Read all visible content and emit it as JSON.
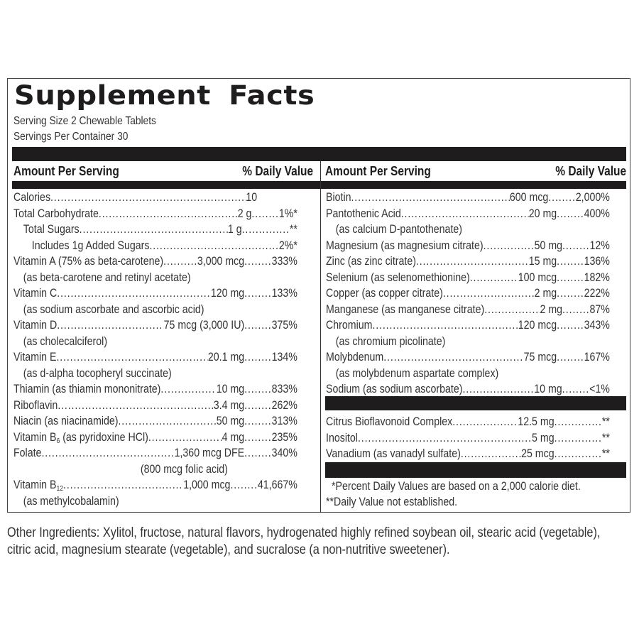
{
  "panel": {
    "title": "Supplement  Facts",
    "serving_size": "Serving Size 2 Chewable Tablets",
    "servings_per_container": "Servings Per Container 30",
    "colors": {
      "bar": "#1e1c1d",
      "text": "#333333",
      "background": "#ffffff"
    }
  },
  "left_column": {
    "header": {
      "amount": "Amount Per Serving",
      "dv": "% Daily Value"
    },
    "rows": [
      {
        "name": "Calories",
        "amount": "10",
        "dv": "",
        "indent": 0
      },
      {
        "name": "Total Carbohydrate",
        "amount": "2 g",
        "dv": "1%*",
        "indent": 0
      },
      {
        "name": "Total Sugars",
        "amount": "1 g",
        "dv": "**",
        "indent": 1
      },
      {
        "name": "Includes 1g Added Sugars",
        "amount": "",
        "dv": "2%*",
        "indent": 2
      },
      {
        "name": "Vitamin A (75% as beta-carotene)",
        "amount": "3,000 mcg",
        "dv": "333%",
        "indent": 0
      },
      {
        "name": "(as beta-carotene and retinyl acetate)",
        "amount": "",
        "dv": "",
        "indent": 1,
        "note": true
      },
      {
        "name": "Vitamin C",
        "amount": "120 mg",
        "dv": "133%",
        "indent": 0
      },
      {
        "name": "(as sodium ascorbate and ascorbic acid)",
        "amount": "",
        "dv": "",
        "indent": 1,
        "note": true
      },
      {
        "name": "Vitamin D",
        "amount": "75 mcg (3,000 IU)",
        "dv": "375%",
        "indent": 0
      },
      {
        "name": "(as cholecalciferol)",
        "amount": "",
        "dv": "",
        "indent": 1,
        "note": true
      },
      {
        "name": "Vitamin E",
        "amount": "20.1 mg",
        "dv": "134%",
        "indent": 0
      },
      {
        "name": "(as d-alpha tocopheryl succinate)",
        "amount": "",
        "dv": "",
        "indent": 1,
        "note": true
      },
      {
        "name": "Thiamin (as thiamin mononitrate)",
        "amount": "10 mg",
        "dv": "833%",
        "indent": 0
      },
      {
        "name": "Riboflavin",
        "amount": "3.4 mg",
        "dv": "262%",
        "indent": 0
      },
      {
        "name": "Niacin (as niacinamide)",
        "amount": "50 mg",
        "dv": "313%",
        "indent": 0
      },
      {
        "name": "Vitamin B6 (as pyridoxine HCl)",
        "amount": "4 mg",
        "dv": "235%",
        "indent": 0
      },
      {
        "name": "Folate",
        "amount": "1,360 mcg DFE",
        "dv": "340%",
        "indent": 0
      },
      {
        "name": "(800 mcg folic acid)",
        "amount": "",
        "dv": "",
        "indent": 0,
        "note": true,
        "center": true
      },
      {
        "name": "Vitamin B12",
        "amount": "1,000 mcg",
        "dv": "41,667%",
        "indent": 0
      },
      {
        "name": "(as methylcobalamin)",
        "amount": "",
        "dv": "",
        "indent": 1,
        "note": true
      }
    ]
  },
  "right_column": {
    "header": {
      "amount": "Amount Per Serving",
      "dv": "% Daily Value"
    },
    "rows": [
      {
        "name": "Biotin",
        "amount": "600 mcg",
        "dv": "2,000%"
      },
      {
        "name": "Pantothenic Acid",
        "amount": "20 mg",
        "dv": "400%"
      },
      {
        "name": "(as calcium D-pantothenate)",
        "amount": "",
        "dv": "",
        "note": true
      },
      {
        "name": "Magnesium (as magnesium citrate)",
        "amount": "50 mg",
        "dv": "12%"
      },
      {
        "name": "Zinc (as zinc citrate)",
        "amount": "15 mg",
        "dv": "136%"
      },
      {
        "name": "Selenium (as selenomethionine)",
        "amount": "100 mcg",
        "dv": "182%"
      },
      {
        "name": "Copper (as copper citrate)",
        "amount": "2 mg",
        "dv": "222%"
      },
      {
        "name": "Manganese (as manganese citrate)",
        "amount": "2 mg",
        "dv": "87%"
      },
      {
        "name": "Chromium",
        "amount": "120 mcg",
        "dv": "343%"
      },
      {
        "name": "(as chromium picolinate)",
        "amount": "",
        "dv": "",
        "note": true
      },
      {
        "name": "Molybdenum",
        "amount": "75 mcg",
        "dv": "167%"
      },
      {
        "name": "(as molybdenum aspartate complex)",
        "amount": "",
        "dv": "",
        "note": true
      },
      {
        "name": "Sodium (as sodium ascorbate)",
        "amount": "10 mg",
        "dv": "<1%"
      }
    ],
    "other_rows": [
      {
        "name": "Citrus Bioflavonoid Complex",
        "amount": "12.5 mg",
        "dv": "**"
      },
      {
        "name": "Inositol",
        "amount": "5 mg",
        "dv": "**"
      },
      {
        "name": "Vanadium (as vanadyl sulfate)",
        "amount": "25 mcg",
        "dv": "**"
      }
    ],
    "footnotes": [
      "*Percent Daily Values are based on a 2,000 calorie diet.",
      "**Daily Value not established."
    ]
  },
  "other_ingredients": "Other Ingredients: Xylitol, fructose, natural flavors, hydrogenated highly refined soybean oil, stearic acid (vegetable), citric acid, magnesium stearate (vegetable), and sucralose (a non-nutritive sweetener)."
}
